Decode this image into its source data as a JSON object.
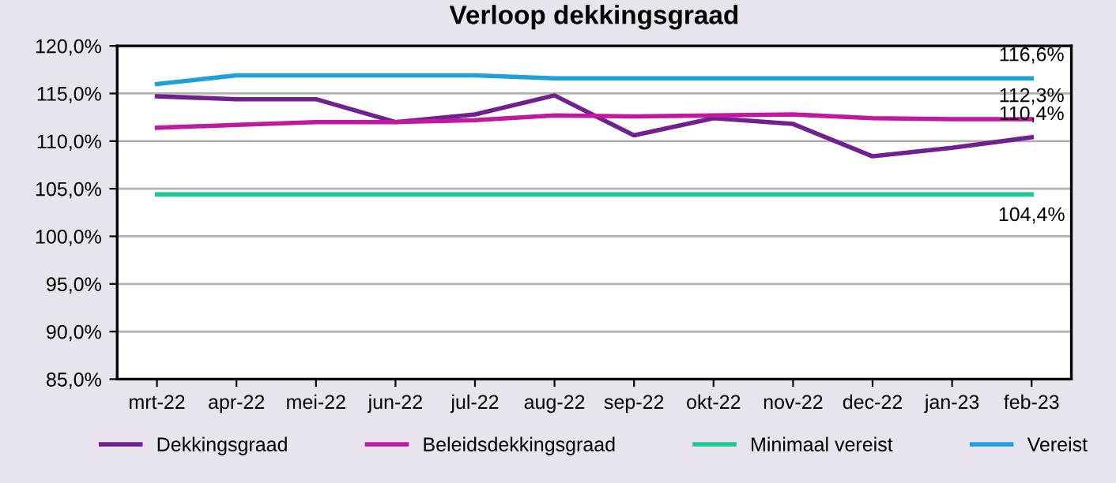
{
  "chart_data": {
    "type": "line",
    "title": "Verloop dekkingsgraad",
    "categories": [
      "mrt-22",
      "apr-22",
      "mei-22",
      "jun-22",
      "jul-22",
      "aug-22",
      "sep-22",
      "okt-22",
      "nov-22",
      "dec-22",
      "jan-23",
      "feb-23"
    ],
    "series": [
      {
        "name": "Dekkingsgraad",
        "color": "#71208f",
        "values": [
          114.7,
          114.4,
          114.4,
          112.0,
          112.8,
          114.8,
          110.6,
          112.4,
          111.8,
          108.4,
          109.3,
          110.4
        ],
        "value_labels": [
          null,
          null,
          null,
          null,
          null,
          null,
          null,
          null,
          null,
          null,
          null,
          "110,4%"
        ]
      },
      {
        "name": "Beleidsdekkingsgraad",
        "color": "#c0189e",
        "values": [
          111.4,
          111.7,
          112.0,
          112.0,
          112.2,
          112.7,
          112.6,
          112.7,
          112.8,
          112.4,
          112.3,
          112.3
        ],
        "value_labels": [
          null,
          null,
          null,
          null,
          null,
          null,
          null,
          null,
          null,
          null,
          null,
          "112,3%"
        ]
      },
      {
        "name": "Minimaal vereist",
        "color": "#1ec896",
        "values": [
          104.4,
          104.4,
          104.4,
          104.4,
          104.4,
          104.4,
          104.4,
          104.4,
          104.4,
          104.4,
          104.4,
          104.4
        ],
        "value_labels": [
          null,
          null,
          null,
          null,
          null,
          null,
          null,
          null,
          null,
          null,
          null,
          "104,4%"
        ]
      },
      {
        "name": "Vereist",
        "color": "#1ea0d8",
        "values": [
          116.0,
          116.9,
          116.9,
          116.9,
          116.9,
          116.6,
          116.6,
          116.6,
          116.6,
          116.6,
          116.6,
          116.6
        ],
        "value_labels": [
          null,
          null,
          null,
          null,
          null,
          null,
          null,
          null,
          null,
          null,
          null,
          "116,6%"
        ]
      }
    ],
    "ylim": [
      85,
      120
    ],
    "yticks": [
      {
        "value": 85,
        "label": "85,0%"
      },
      {
        "value": 90,
        "label": "90,0%"
      },
      {
        "value": 95,
        "label": "95,0%"
      },
      {
        "value": 100,
        "label": "100,0%"
      },
      {
        "value": 105,
        "label": "105,0%"
      },
      {
        "value": 110,
        "label": "110,0%"
      },
      {
        "value": 115,
        "label": "115,0%"
      },
      {
        "value": 120,
        "label": "120,0%"
      }
    ],
    "grid": "y",
    "legend": "bottom",
    "marker": "none",
    "line_style": "solid"
  }
}
